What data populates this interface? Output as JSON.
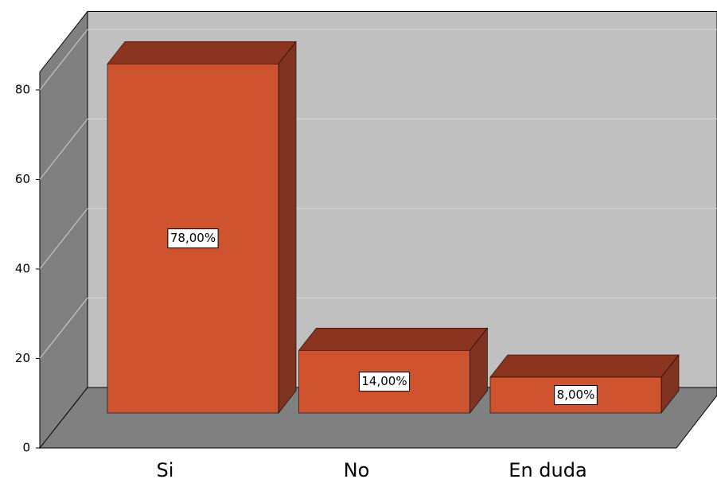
{
  "chart_data": {
    "type": "bar3d",
    "categories": [
      "Si",
      "No",
      "En duda"
    ],
    "values": [
      78,
      14,
      8
    ],
    "value_labels": [
      "78,00%",
      "14,00%",
      "8,00%"
    ],
    "color": "#d0532f",
    "ylim": [
      0,
      84
    ],
    "yticks": [
      0,
      20,
      40,
      60,
      80
    ],
    "grid": true
  }
}
